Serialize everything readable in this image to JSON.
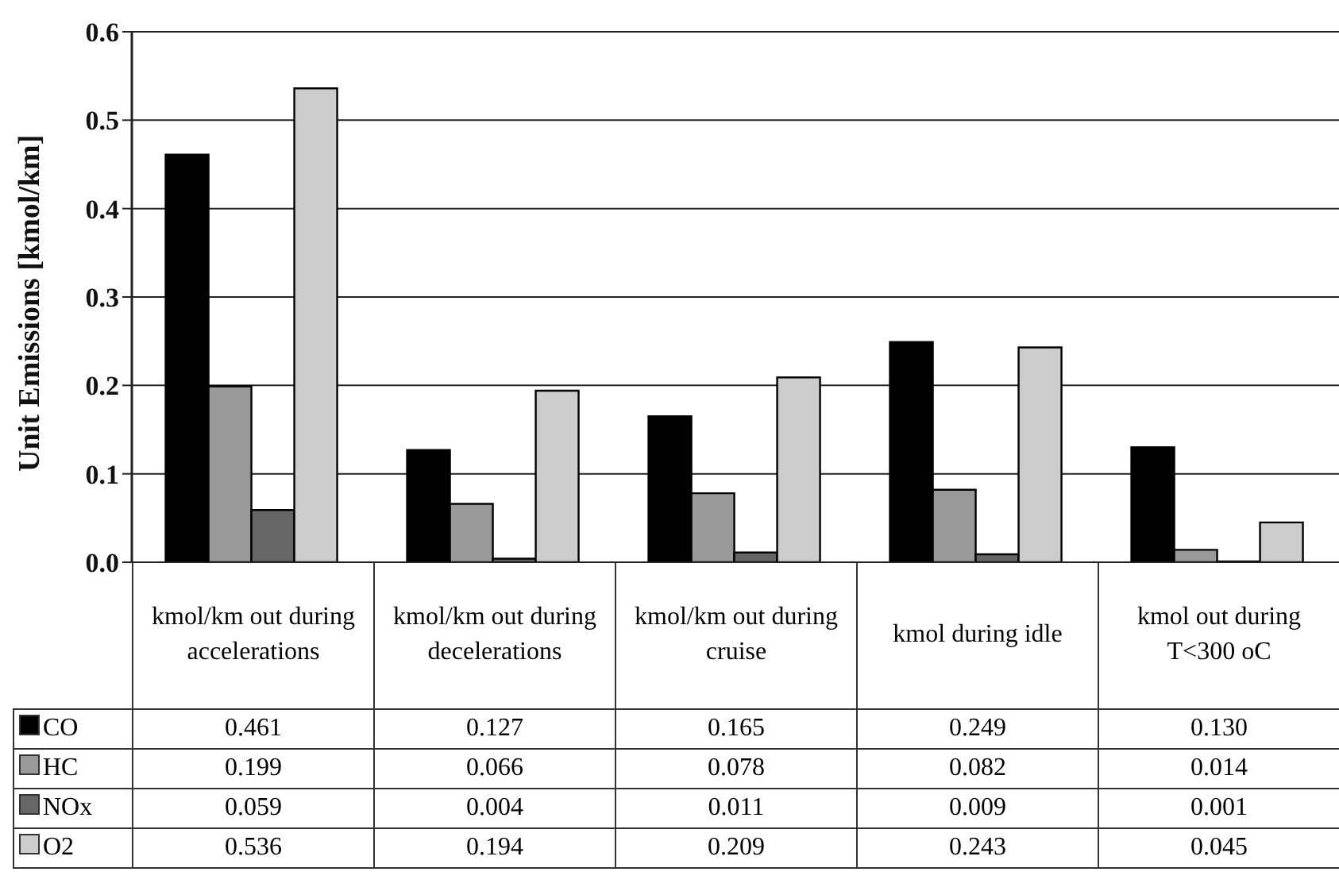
{
  "chart_data": {
    "type": "bar",
    "ylabel": "Unit Emissions [kmol/km]",
    "categories": [
      "kmol/km out during accelerations",
      "kmol/km out during decelerations",
      "kmol/km out during cruise",
      "kmol during idle",
      "kmol out during T<300 oC"
    ],
    "series": [
      {
        "name": "CO",
        "color": "#000000",
        "values": [
          0.461,
          0.127,
          0.165,
          0.249,
          0.13
        ],
        "value_labels": [
          "0.461",
          "0.127",
          "0.165",
          "0.249",
          "0.130"
        ]
      },
      {
        "name": "HC",
        "color": "#999999",
        "values": [
          0.199,
          0.066,
          0.078,
          0.082,
          0.014
        ],
        "value_labels": [
          "0.199",
          "0.066",
          "0.078",
          "0.082",
          "0.014"
        ]
      },
      {
        "name": "NOx",
        "color": "#666666",
        "values": [
          0.059,
          0.004,
          0.011,
          0.009,
          0.001
        ],
        "value_labels": [
          "0.059",
          "0.004",
          "0.011",
          "0.009",
          "0.001"
        ]
      },
      {
        "name": "O2",
        "color": "#cccccc",
        "values": [
          0.536,
          0.194,
          0.209,
          0.243,
          0.045
        ],
        "value_labels": [
          "0.536",
          "0.194",
          "0.209",
          "0.243",
          "0.045"
        ]
      }
    ],
    "ylim": [
      0,
      0.6
    ],
    "yticks": [
      {
        "value": 0,
        "label": "0.0"
      },
      {
        "value": 0.1,
        "label": "0.1"
      },
      {
        "value": 0.2,
        "label": "0.2"
      },
      {
        "value": 0.3,
        "label": "0.3"
      },
      {
        "value": 0.4,
        "label": "0.4"
      },
      {
        "value": 0.5,
        "label": "0.5"
      },
      {
        "value": 0.6,
        "label": "0.6"
      }
    ],
    "grid": "y",
    "legend": "bottom left"
  }
}
